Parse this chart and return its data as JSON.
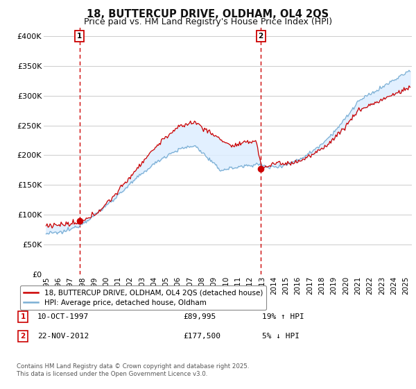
{
  "title_line1": "18, BUTTERCUP DRIVE, OLDHAM, OL4 2QS",
  "title_line2": "Price paid vs. HM Land Registry's House Price Index (HPI)",
  "ylabel_ticks": [
    "£0",
    "£50K",
    "£100K",
    "£150K",
    "£200K",
    "£250K",
    "£300K",
    "£350K",
    "£400K"
  ],
  "ytick_values": [
    0,
    50000,
    100000,
    150000,
    200000,
    250000,
    300000,
    350000,
    400000
  ],
  "ylim": [
    0,
    415000
  ],
  "xlim_start": 1994.8,
  "xlim_end": 2025.5,
  "sale1_x": 1997.78,
  "sale1_y": 89995,
  "sale2_x": 2012.9,
  "sale2_y": 177500,
  "hpi_color": "#7bafd4",
  "price_color": "#cc0000",
  "fill_color": "#ddeeff",
  "sale_dot_color": "#cc0000",
  "vline_color": "#cc0000",
  "grid_color": "#cccccc",
  "background_color": "#ffffff",
  "legend_label1": "18, BUTTERCUP DRIVE, OLDHAM, OL4 2QS (detached house)",
  "legend_label2": "HPI: Average price, detached house, Oldham",
  "annotation1_label": "1",
  "annotation2_label": "2",
  "table_row1": [
    "1",
    "10-OCT-1997",
    "£89,995",
    "19% ↑ HPI"
  ],
  "table_row2": [
    "2",
    "22-NOV-2012",
    "£177,500",
    "5% ↓ HPI"
  ],
  "footer": "Contains HM Land Registry data © Crown copyright and database right 2025.\nThis data is licensed under the Open Government Licence v3.0.",
  "title_fontsize": 10.5,
  "subtitle_fontsize": 9,
  "tick_fontsize": 8
}
